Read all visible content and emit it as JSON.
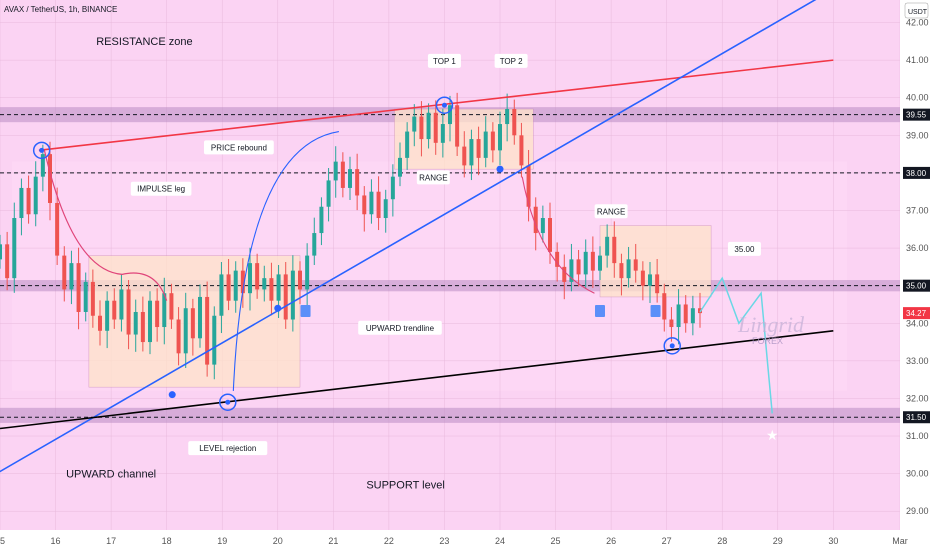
{
  "symbol_line": "AVAX / TetherUS, 1h, BINANCE",
  "currency": "USDT",
  "watermark": {
    "main": "Lingrid",
    "sub": "FOREX"
  },
  "chart_data": {
    "type": "candlestick",
    "ylim": [
      28.5,
      42.6
    ],
    "xlim": [
      15.0,
      31.2
    ],
    "y_ticks": [
      "29.00",
      "30.00",
      "31.00",
      "32.00",
      "33.00",
      "34.00",
      "35.00",
      "36.00",
      "37.00",
      "38.00",
      "39.00",
      "40.00",
      "41.00",
      "42.00"
    ],
    "x_ticks": [
      {
        "v": 15,
        "t": "15"
      },
      {
        "v": 16,
        "t": "16"
      },
      {
        "v": 17,
        "t": "17"
      },
      {
        "v": 18,
        "t": "18"
      },
      {
        "v": 19,
        "t": "19"
      },
      {
        "v": 20,
        "t": "20"
      },
      {
        "v": 21,
        "t": "21"
      },
      {
        "v": 22,
        "t": "22"
      },
      {
        "v": 23,
        "t": "23"
      },
      {
        "v": 24,
        "t": "24"
      },
      {
        "v": 25,
        "t": "25"
      },
      {
        "v": 26,
        "t": "26"
      },
      {
        "v": 27,
        "t": "27"
      },
      {
        "v": 28,
        "t": "28"
      },
      {
        "v": 29,
        "t": "29"
      },
      {
        "v": 30,
        "t": "30"
      },
      {
        "v": 31.2,
        "t": "Mar"
      }
    ],
    "price_badges": [
      {
        "value": 39.55,
        "text": "39.55",
        "color": "#131722"
      },
      {
        "value": 38.0,
        "text": "38.00",
        "color": "#131722"
      },
      {
        "value": 35.0,
        "text": "35.00",
        "color": "#131722"
      },
      {
        "value": 34.27,
        "text": "34.27",
        "color": "#f23645"
      },
      {
        "value": 31.5,
        "text": "31.50",
        "color": "#131722"
      }
    ],
    "zones": [
      {
        "name": "resistance",
        "y1": 39.35,
        "y2": 39.75
      },
      {
        "name": "mid",
        "y1": 34.85,
        "y2": 35.15
      },
      {
        "name": "support",
        "y1": 31.35,
        "y2": 31.75
      }
    ],
    "hlines": [
      39.55,
      38.0,
      35.0,
      31.5
    ],
    "lines": [
      {
        "name": "upper-channel",
        "x1": 15.7,
        "y1": 38.6,
        "x2": 30.0,
        "y2": 41.0,
        "color": "#f23645"
      },
      {
        "name": "upward-trendline",
        "x1": 14.7,
        "y1": 29.8,
        "x2": 29.9,
        "y2": 42.8,
        "color": "#2962ff"
      },
      {
        "name": "lower-channel",
        "x1": 15.0,
        "y1": 31.2,
        "x2": 30.0,
        "y2": 33.8,
        "color": "#000000"
      }
    ],
    "candles_close": [
      36.1,
      35.2,
      36.8,
      37.6,
      36.9,
      37.9,
      38.5,
      37.2,
      35.8,
      34.9,
      35.6,
      34.3,
      35.1,
      34.2,
      33.8,
      34.6,
      34.1,
      34.9,
      33.7,
      34.3,
      33.5,
      34.6,
      33.9,
      34.8,
      34.1,
      33.2,
      34.4,
      33.6,
      34.7,
      32.9,
      34.2,
      35.3,
      34.6,
      35.4,
      34.8,
      35.6,
      34.9,
      35.2,
      34.6,
      35.3,
      34.1,
      35.4,
      34.9,
      35.8,
      36.4,
      37.1,
      37.8,
      38.3,
      37.6,
      38.1,
      37.4,
      36.9,
      37.5,
      36.8,
      37.3,
      37.9,
      38.4,
      39.1,
      39.5,
      38.9,
      39.6,
      38.8,
      39.3,
      39.8,
      38.7,
      38.2,
      38.9,
      38.4,
      39.1,
      38.6,
      39.3,
      39.7,
      39.0,
      38.2,
      37.1,
      36.4,
      36.8,
      35.9,
      35.5,
      35.1,
      35.7,
      35.3,
      35.9,
      35.4,
      35.8,
      36.3,
      35.6,
      35.2,
      35.7,
      35.4,
      35.0,
      35.3,
      34.8,
      34.1,
      33.9,
      34.5,
      34.0,
      34.4,
      34.27
    ],
    "annotations": [
      {
        "text": "RESISTANCE zone",
        "x": 17.6,
        "y": 41.4
      },
      {
        "text": "TOP 1",
        "x": 23.0,
        "y": 40.9
      },
      {
        "text": "TOP 2",
        "x": 24.2,
        "y": 40.9
      },
      {
        "text": "PRICE rebound",
        "x": 19.3,
        "y": 38.6
      },
      {
        "text": "IMPULSE leg",
        "x": 17.9,
        "y": 37.5
      },
      {
        "text": "RANGE",
        "x": 22.8,
        "y": 37.8
      },
      {
        "text": "RANGE",
        "x": 26.0,
        "y": 36.9
      },
      {
        "text": "35.00",
        "x": 28.4,
        "y": 35.9
      },
      {
        "text": "UPWARD trendline",
        "x": 22.2,
        "y": 33.8
      },
      {
        "text": "LEVEL rejection",
        "x": 19.1,
        "y": 30.6
      },
      {
        "text": "UPWARD channel",
        "x": 17.0,
        "y": 29.9
      },
      {
        "text": "SUPPORT level",
        "x": 22.3,
        "y": 29.6
      }
    ]
  }
}
